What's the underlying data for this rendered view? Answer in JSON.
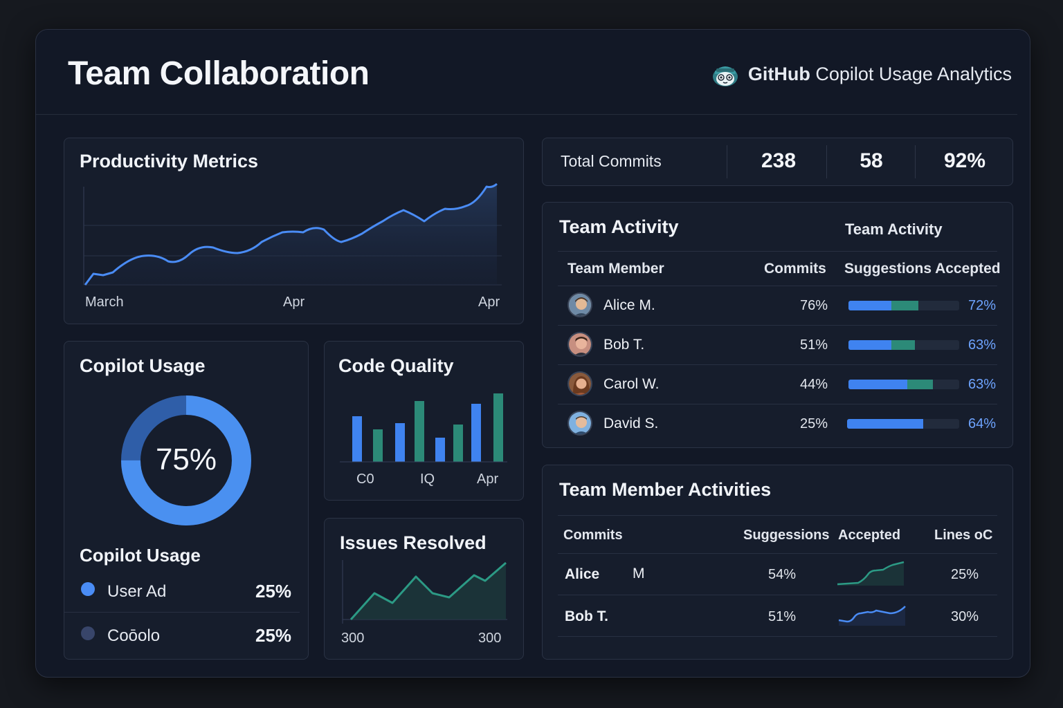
{
  "header": {
    "title": "Team Collaboration",
    "brand_bold": "GitHub",
    "brand_rest": " Copilot Usage Analytics"
  },
  "productivity": {
    "title": "Productivity Metrics",
    "x_labels": [
      "March",
      "Apr",
      "Apr"
    ]
  },
  "stats": {
    "label": "Total Commits",
    "values": [
      "238",
      "58",
      "92%"
    ]
  },
  "team_activity": {
    "title": "Team Activity",
    "subtitle": "Team Activity",
    "columns": [
      "Team Member",
      "Commits",
      "Suggestions Accepted"
    ],
    "rows": [
      {
        "name": "Alice M.",
        "commits": "76%",
        "accepted": "72%",
        "blue": 0.39,
        "green": 0.24
      },
      {
        "name": "Bob T.",
        "commits": "51%",
        "accepted": "63%",
        "blue": 0.39,
        "green": 0.21
      },
      {
        "name": "Carol W.",
        "commits": "44%",
        "accepted": "63%",
        "blue": 0.53,
        "green": 0.23
      },
      {
        "name": "David S.",
        "commits": "25%",
        "accepted": "64%",
        "blue": 0.68,
        "green": 0.0
      }
    ]
  },
  "copilot_usage": {
    "title": "Copilot Usage",
    "center_value": "75%",
    "fraction": 0.75,
    "legend_title": "Copilot Usage",
    "legend": [
      {
        "label": "User Ad",
        "value": "25%"
      },
      {
        "label": "Coōolo",
        "value": "25%"
      }
    ]
  },
  "code_quality": {
    "title": "Code Quality",
    "x_labels": [
      "C0",
      "IQ",
      "Apr"
    ]
  },
  "issues": {
    "title": "Issues Resolved",
    "x_labels": [
      "300",
      "300"
    ]
  },
  "member_activities": {
    "title": "Team Member Activities",
    "columns": [
      "Commits",
      "Suggessions",
      "Accepted",
      "Lines oC"
    ],
    "rows": [
      {
        "name": "Alice",
        "extra": "M",
        "suggestions": "54%",
        "lines": "25%"
      },
      {
        "name": "Bob T.",
        "extra": "",
        "suggestions": "51%",
        "lines": "30%"
      }
    ]
  },
  "colors": {
    "accent_blue": "#3f83f0",
    "accent_teal": "#2c8a78",
    "background": "#121826"
  }
}
